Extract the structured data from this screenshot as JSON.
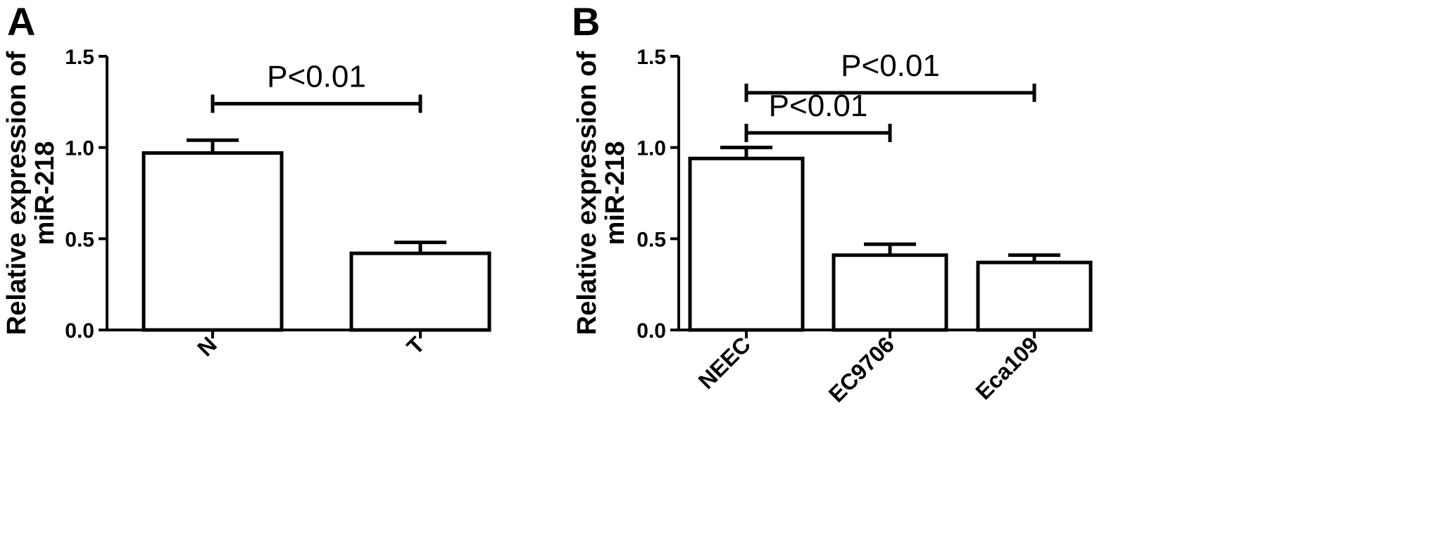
{
  "chart_data": [
    {
      "type": "bar",
      "panel_label": "A",
      "categories": [
        "N",
        "T"
      ],
      "values": [
        0.97,
        0.42
      ],
      "errors": [
        0.07,
        0.06
      ],
      "ylabel_lines": [
        "Relative expression of",
        "miR-218"
      ],
      "ylim": [
        0,
        1.5
      ],
      "yticks": [
        "0.0",
        "0.5",
        "1.0",
        "1.5"
      ],
      "yticks_values": [
        0,
        0.5,
        1.0,
        1.5
      ],
      "annotations": [
        {
          "label": "P<0.01",
          "from": 0,
          "to": 1,
          "y": 1.24
        }
      ],
      "grid": false,
      "bar_fill": "#ffffff",
      "bar_edge": "#000000"
    },
    {
      "type": "bar",
      "panel_label": "B",
      "categories": [
        "NEEC",
        "EC9706",
        "Eca109"
      ],
      "values": [
        0.94,
        0.41,
        0.37
      ],
      "errors": [
        0.06,
        0.06,
        0.04
      ],
      "ylabel_lines": [
        "Relative expression of",
        "miR-218"
      ],
      "ylim": [
        0,
        1.5
      ],
      "yticks": [
        "0.0",
        "0.5",
        "1.0",
        "1.5"
      ],
      "yticks_values": [
        0,
        0.5,
        1.0,
        1.5
      ],
      "annotations": [
        {
          "label": "P<0.01",
          "from": 0,
          "to": 2,
          "y": 1.3
        },
        {
          "label": "P<0.01",
          "from": 0,
          "to": 1,
          "y": 1.08
        }
      ],
      "grid": false,
      "bar_fill": "#ffffff",
      "bar_edge": "#000000"
    }
  ]
}
